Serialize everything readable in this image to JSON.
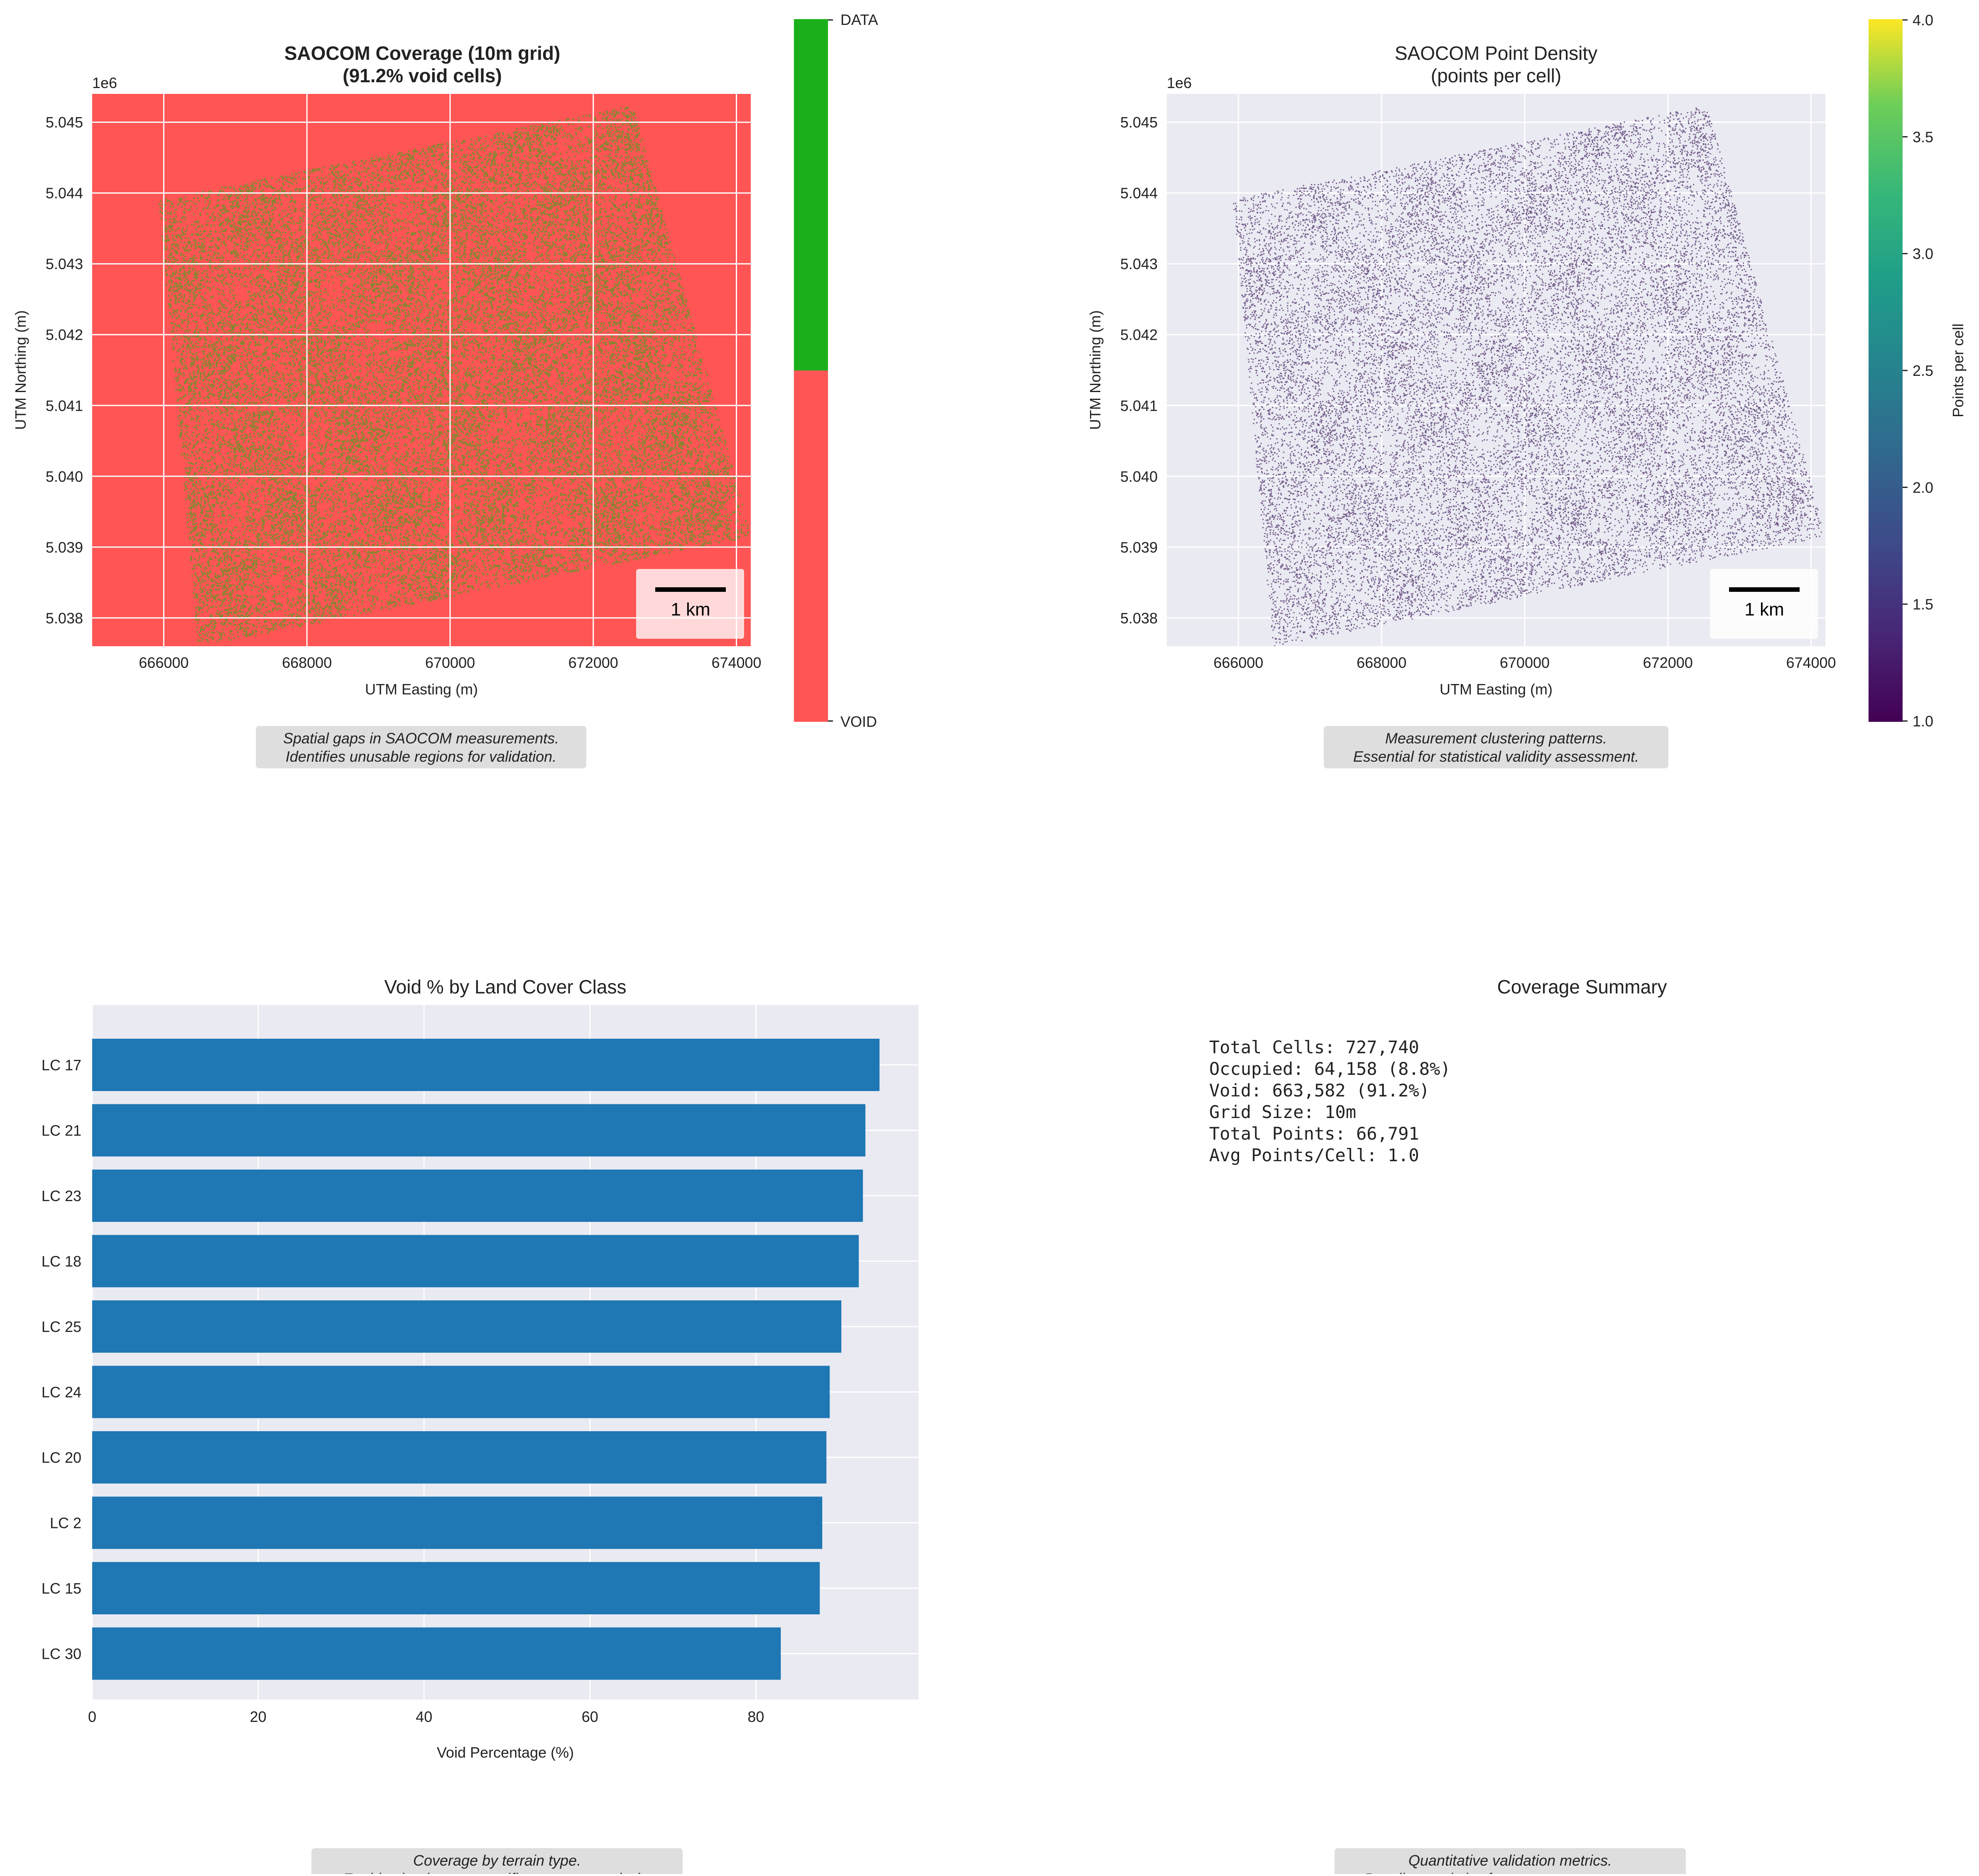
{
  "colors": {
    "void": "#ff5555",
    "data": "#1bb01b",
    "axes_bg": "#eaeaf2",
    "bar": "#1f77b4",
    "density_dot": "#4a2a66",
    "caption_bg": "#dedede"
  },
  "panel1": {
    "title_line1": "SAOCOM Coverage (10m grid)",
    "title_line2": "(91.2% void cells)",
    "offset_text": "1e6",
    "xlabel": "UTM Easting (m)",
    "ylabel": "UTM Northing (m)",
    "scalebar_label": "1 km",
    "colorbar": {
      "top_label": "DATA",
      "bottom_label": "VOID"
    },
    "caption_line1": "Spatial gaps in SAOCOM measurements.",
    "caption_line2": "Identifies unusable regions for validation."
  },
  "panel2": {
    "title_line1": "SAOCOM Point Density",
    "title_line2": "(points per cell)",
    "offset_text": "1e6",
    "xlabel": "UTM Easting (m)",
    "ylabel": "UTM Northing (m)",
    "scalebar_label": "1 km",
    "colorbar": {
      "label": "Points per cell",
      "ticks": [
        "4.0",
        "3.5",
        "3.0",
        "2.5",
        "2.0",
        "1.5",
        "1.0"
      ]
    },
    "caption_line1": "Measurement clustering patterns.",
    "caption_line2": "Essential for statistical validity assessment."
  },
  "map_axes": {
    "x_ticks": [
      "666000",
      "668000",
      "670000",
      "672000",
      "674000"
    ],
    "y_ticks": [
      "5.045",
      "5.044",
      "5.043",
      "5.042",
      "5.041",
      "5.040",
      "5.039",
      "5.038"
    ]
  },
  "panel3": {
    "caption_line1": "Coverage by terrain type.",
    "caption_line2": "Enables land-cover-specific accuracy analysis."
  },
  "panel4": {
    "title": "Coverage Summary",
    "lines": [
      "Total Cells: 727,740",
      "Occupied: 64,158 (8.8%)",
      "Void: 663,582 (91.2%)",
      "Grid Size: 10m",
      "Total Points: 66,791",
      "Avg Points/Cell: 1.0"
    ],
    "caption_line1": "Quantitative validation metrics.",
    "caption_line2": "Baseline statistics for accuracy assessment."
  },
  "chart_data": [
    {
      "type": "heatmap",
      "title": "SAOCOM Coverage (10m grid)\n(91.2% void cells)",
      "xlabel": "UTM Easting (m)",
      "ylabel": "UTM Northing (m)",
      "xlim": [
        665000,
        674200
      ],
      "ylim": [
        5037600,
        5045400
      ],
      "categories": [
        "VOID",
        "DATA"
      ],
      "void_percent": 91.2,
      "grid": true
    },
    {
      "type": "heatmap",
      "title": "SAOCOM Point Density\n(points per cell)",
      "xlabel": "UTM Easting (m)",
      "ylabel": "UTM Northing (m)",
      "xlim": [
        665000,
        674200
      ],
      "ylim": [
        5037600,
        5045400
      ],
      "colorbar_label": "Points per cell",
      "colorbar_range": [
        1.0,
        4.0
      ],
      "colormap": "viridis",
      "grid": true
    },
    {
      "type": "bar",
      "orientation": "horizontal",
      "title": "Void % by Land Cover Class",
      "xlabel": "Void Percentage (%)",
      "ylabel": "",
      "categories": [
        "LC 17",
        "LC 21",
        "LC 23",
        "LC 18",
        "LC 25",
        "LC 24",
        "LC 20",
        "LC 2",
        "LC 15",
        "LC 30"
      ],
      "values": [
        94.9,
        93.2,
        92.9,
        92.4,
        90.3,
        88.9,
        88.5,
        88.0,
        87.7,
        83.0
      ],
      "xlim": [
        0,
        99.6
      ],
      "x_ticks": [
        0,
        20,
        40,
        60,
        80
      ],
      "grid": true
    }
  ]
}
